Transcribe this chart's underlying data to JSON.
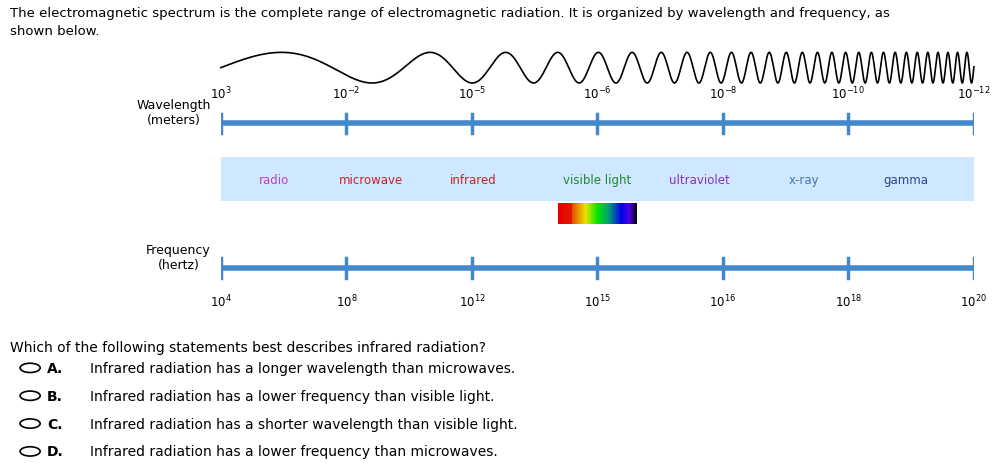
{
  "title_text": "The electromagnetic spectrum is the complete range of electromagnetic radiation. It is organized by wavelength and frequency, as\nshown below.",
  "wavelength_label": "Wavelength\n(meters)",
  "frequency_label": "Frequency\n(hertz)",
  "wl_labels": [
    "10$^{3}$",
    "10$^{-2}$",
    "10$^{-5}$",
    "10$^{-6}$",
    "10$^{-8}$",
    "10$^{-10}$",
    "10$^{-12}$"
  ],
  "freq_labels": [
    "10$^{4}$",
    "10$^{8}$",
    "10$^{12}$",
    "10$^{15}$",
    "10$^{16}$",
    "10$^{18}$",
    "10$^{20}$"
  ],
  "spectrum_labels": [
    "radio",
    "microwave",
    "infrared",
    "visible light",
    "ultraviolet",
    "x-ray",
    "gamma"
  ],
  "spectrum_label_colors": [
    "#bb44bb",
    "#cc2222",
    "#cc2222",
    "#228833",
    "#8833bb",
    "#4477aa",
    "#334488"
  ],
  "spectrum_bg": "#d0e8ff",
  "bar_color": "#4488cc",
  "question": "Which of the following statements best describes infrared radiation?",
  "options": [
    {
      "letter": "A.",
      "text": "Infrared radiation has a longer wavelength than microwaves."
    },
    {
      "letter": "B.",
      "text": "Infrared radiation has a lower frequency than visible light."
    },
    {
      "letter": "C.",
      "text": "Infrared radiation has a shorter wavelength than visible light."
    },
    {
      "letter": "D.",
      "text": "Infrared radiation has a lower frequency than microwaves."
    }
  ],
  "bg_color": "#ffffff"
}
